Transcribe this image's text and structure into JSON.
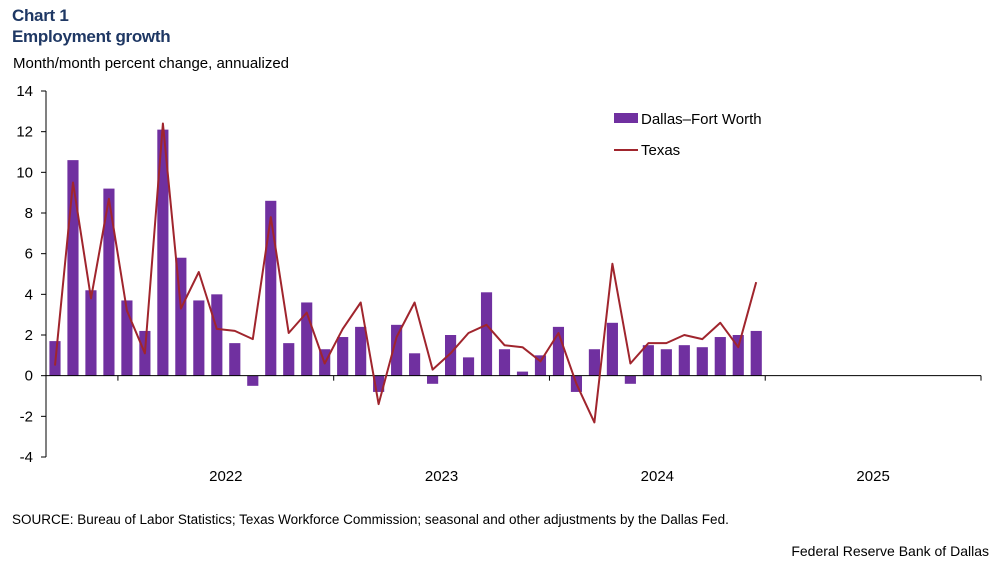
{
  "header": {
    "chart_label": "Chart 1",
    "title": "Employment growth",
    "subtitle": "Month/month  percent change, annualized"
  },
  "footer": {
    "source": "SOURCE: Bureau of Labor Statistics; Texas Workforce Commission; seasonal and other adjustments by the Dallas Fed.",
    "credit": "Federal Reserve Bank of Dallas"
  },
  "chart_data": {
    "type": "bar",
    "title": "Employment growth",
    "ylabel": "Month/month  percent change, annualized",
    "ylim": [
      -4,
      14
    ],
    "yticks": [
      -4,
      -2,
      0,
      2,
      4,
      6,
      8,
      10,
      12,
      14
    ],
    "x_range": [
      "2021-09",
      "2025-12"
    ],
    "year_labels": [
      "2022",
      "2023",
      "2024",
      "2025"
    ],
    "x": [
      "2021-09",
      "2021-10",
      "2021-11",
      "2021-12",
      "2022-01",
      "2022-02",
      "2022-03",
      "2022-04",
      "2022-05",
      "2022-06",
      "2022-07",
      "2022-08",
      "2022-09",
      "2022-10",
      "2022-11",
      "2022-12",
      "2023-01",
      "2023-02",
      "2023-03",
      "2023-04",
      "2023-05",
      "2023-06",
      "2023-07",
      "2023-08",
      "2023-09",
      "2023-10",
      "2023-11",
      "2023-12",
      "2024-01",
      "2024-02",
      "2024-03",
      "2024-04",
      "2024-05",
      "2024-06",
      "2024-07",
      "2024-08",
      "2024-09",
      "2024-10",
      "2024-11",
      "2024-12"
    ],
    "series": [
      {
        "name": "Dallas–Fort Worth",
        "kind": "bar",
        "color": "#7030a0",
        "values": [
          1.7,
          10.6,
          4.2,
          9.2,
          3.7,
          2.2,
          12.1,
          5.8,
          3.7,
          4.0,
          1.6,
          -0.5,
          8.6,
          1.6,
          3.6,
          1.3,
          1.9,
          2.4,
          -0.8,
          2.5,
          1.1,
          -0.4,
          2.0,
          0.9,
          4.1,
          1.3,
          0.2,
          1.0,
          2.4,
          -0.8,
          1.3,
          2.6,
          -0.4,
          1.5,
          1.3,
          1.5,
          1.4,
          1.9,
          2.0,
          2.2
        ]
      },
      {
        "name": "Texas",
        "kind": "line",
        "color": "#a0252d",
        "values": [
          0.5,
          9.5,
          3.8,
          8.7,
          3.2,
          1.1,
          12.4,
          3.3,
          5.1,
          2.3,
          2.2,
          1.8,
          7.8,
          2.1,
          3.1,
          0.6,
          2.3,
          3.6,
          -1.4,
          1.9,
          3.6,
          0.3,
          1.1,
          2.1,
          2.5,
          1.5,
          1.4,
          0.7,
          2.1,
          -0.4,
          -2.3,
          5.5,
          0.6,
          1.6,
          1.6,
          2.0,
          1.8,
          2.6,
          1.4,
          4.6
        ]
      }
    ],
    "legend": "top-right",
    "grid": false
  }
}
